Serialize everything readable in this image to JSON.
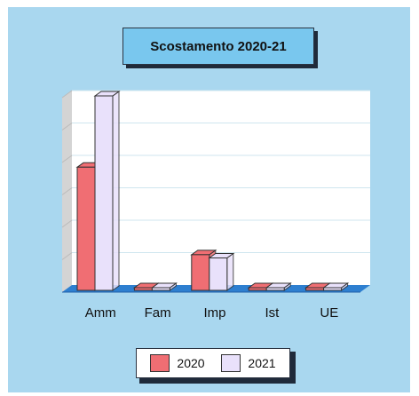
{
  "title": "Scostamento 2020-21",
  "colors": {
    "s2020": "#f06e73",
    "s2021": "#e9e1fb"
  },
  "chart_data": {
    "type": "bar",
    "title": "Scostamento 2020-21",
    "categories": [
      "Amm",
      "Fam",
      "Imp",
      "Ist",
      "UE"
    ],
    "series": [
      {
        "name": "2020",
        "values": [
          3.8,
          0.0,
          1.1,
          0.0,
          0.0
        ]
      },
      {
        "name": "2021",
        "values": [
          6.0,
          0.0,
          1.0,
          0.0,
          0.0
        ]
      }
    ],
    "ylim": [
      0,
      6
    ],
    "grid": true,
    "legend": "bottom"
  }
}
